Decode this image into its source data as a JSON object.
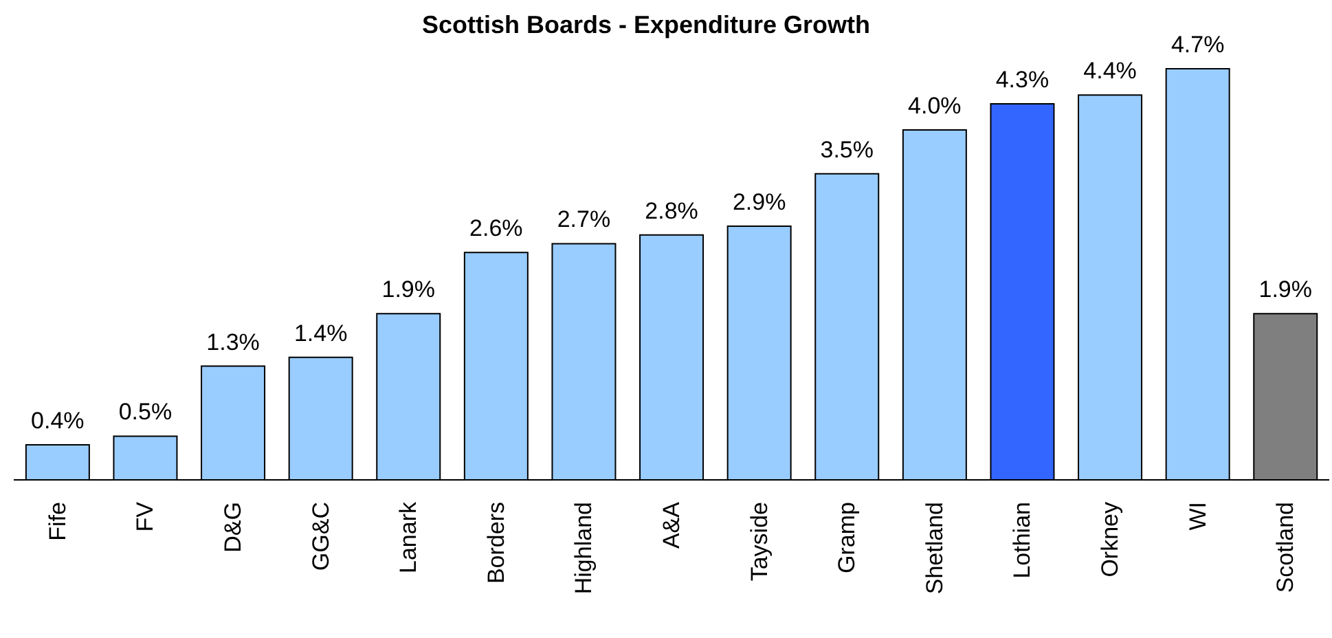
{
  "chart_data": {
    "type": "bar",
    "title": "Scottish Boards - Expenditure Growth",
    "categories": [
      "Fife",
      "FV",
      "D&G",
      "GG&C",
      "Lanark",
      "Borders",
      "Highland",
      "A&A",
      "Tayside",
      "Gramp",
      "Shetland",
      "Lothian",
      "Orkney",
      "WI",
      "Scotland"
    ],
    "values": [
      0.4,
      0.5,
      1.3,
      1.4,
      1.9,
      2.6,
      2.7,
      2.8,
      2.9,
      3.5,
      4.0,
      4.3,
      4.4,
      4.7,
      1.9
    ],
    "colors": [
      "#99ccff",
      "#99ccff",
      "#99ccff",
      "#99ccff",
      "#99ccff",
      "#99ccff",
      "#99ccff",
      "#99ccff",
      "#99ccff",
      "#99ccff",
      "#99ccff",
      "#3366ff",
      "#99ccff",
      "#99ccff",
      "#7f7f7f"
    ],
    "value_labels": [
      "0.4%",
      "0.5%",
      "1.3%",
      "1.4%",
      "1.9%",
      "2.6%",
      "2.7%",
      "2.8%",
      "2.9%",
      "3.5%",
      "4.0%",
      "4.3%",
      "4.4%",
      "4.7%",
      "1.9%"
    ],
    "orientation": "vertical"
  }
}
